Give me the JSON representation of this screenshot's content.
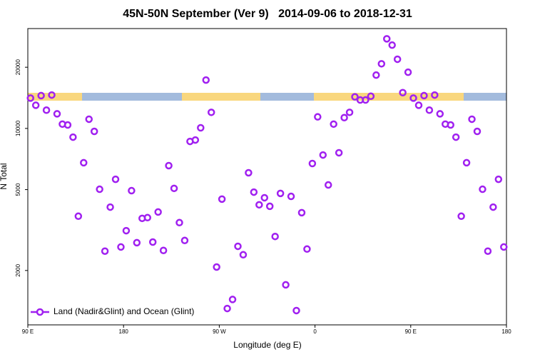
{
  "chart_data": {
    "type": "scatter",
    "title": "45N-50N September (Ver 9)   2014-09-06 to 2018-12-31",
    "x_label": "Longitude (deg E)",
    "y_label": "N Total",
    "log_y": true,
    "legend": "bottom-left",
    "xlim": [
      90,
      540
    ],
    "xticks": [
      {
        "value": 90,
        "label": "90 E"
      },
      {
        "value": 180,
        "label": "180"
      },
      {
        "value": 270,
        "label": "90 W"
      },
      {
        "value": 360,
        "label": "0"
      },
      {
        "value": 450,
        "label": "90 E"
      },
      {
        "value": 540,
        "label": "180"
      }
    ],
    "ylim": [
      1080,
      31000
    ],
    "yticks": [
      2000,
      5000,
      10000,
      20000
    ],
    "series": [
      {
        "name": "Land (Nadir&Glint) and Ocean (Glint)",
        "color": "#a020f0",
        "x": [
          92.5,
          97.5,
          102.5,
          107.5,
          112.5,
          117.5,
          122.5,
          127.5,
          132.5,
          137.5,
          142.5,
          147.5,
          152.5,
          157.5,
          162.5,
          167.5,
          172.5,
          177.5,
          182.5,
          187.5,
          192.5,
          197.5,
          202.5,
          207.5,
          212.5,
          217.5,
          222.5,
          227.5,
          232.5,
          237.5,
          242.5,
          247.5,
          252.5,
          257.5,
          262.5,
          267.5,
          272.5,
          277.5,
          282.5,
          287.5,
          292.5,
          297.5,
          302.5,
          307.5,
          312.5,
          317.5,
          322.5,
          327.5,
          332.5,
          337.5,
          342.5,
          347.5,
          352.5,
          357.5,
          362.5,
          367.5,
          372.5,
          377.5,
          382.5,
          387.5,
          392.5,
          397.5,
          402.5,
          407.5,
          412.5,
          417.5,
          422.5,
          427.5,
          432.5,
          437.5,
          442.5,
          447.5,
          452.5,
          457.5,
          462.5,
          467.5,
          472.5,
          477.5,
          482.5,
          487.5,
          492.5,
          497.5,
          502.5,
          507.5,
          512.5,
          517.5,
          522.5,
          527.5,
          532.5,
          537.5
        ],
        "values": [
          14100,
          13000,
          14500,
          12300,
          14600,
          11800,
          10500,
          10400,
          9060,
          3700,
          6780,
          11100,
          9670,
          5020,
          2490,
          4100,
          5620,
          2610,
          3140,
          4940,
          2740,
          3610,
          3640,
          2760,
          3880,
          2510,
          6560,
          5070,
          3440,
          2810,
          8630,
          8770,
          10070,
          17300,
          12000,
          2080,
          4490,
          1300,
          1440,
          2630,
          2390,
          6050,
          4860,
          4210,
          4560,
          4140,
          2940,
          4790,
          1700,
          4630,
          1270,
          3850,
          2550,
          6720,
          11400,
          7400,
          5270,
          10500,
          7590,
          11300,
          12000,
          14300,
          13800,
          13800,
          14400,
          18300,
          20800,
          27600,
          25700,
          21900,
          15000,
          18900,
          14100,
          13000,
          14500,
          12300,
          14600,
          11800,
          10500,
          10400,
          9060,
          3700,
          6780,
          11100,
          9670,
          5020,
          2490,
          4100,
          5620,
          2610
        ]
      }
    ]
  }
}
